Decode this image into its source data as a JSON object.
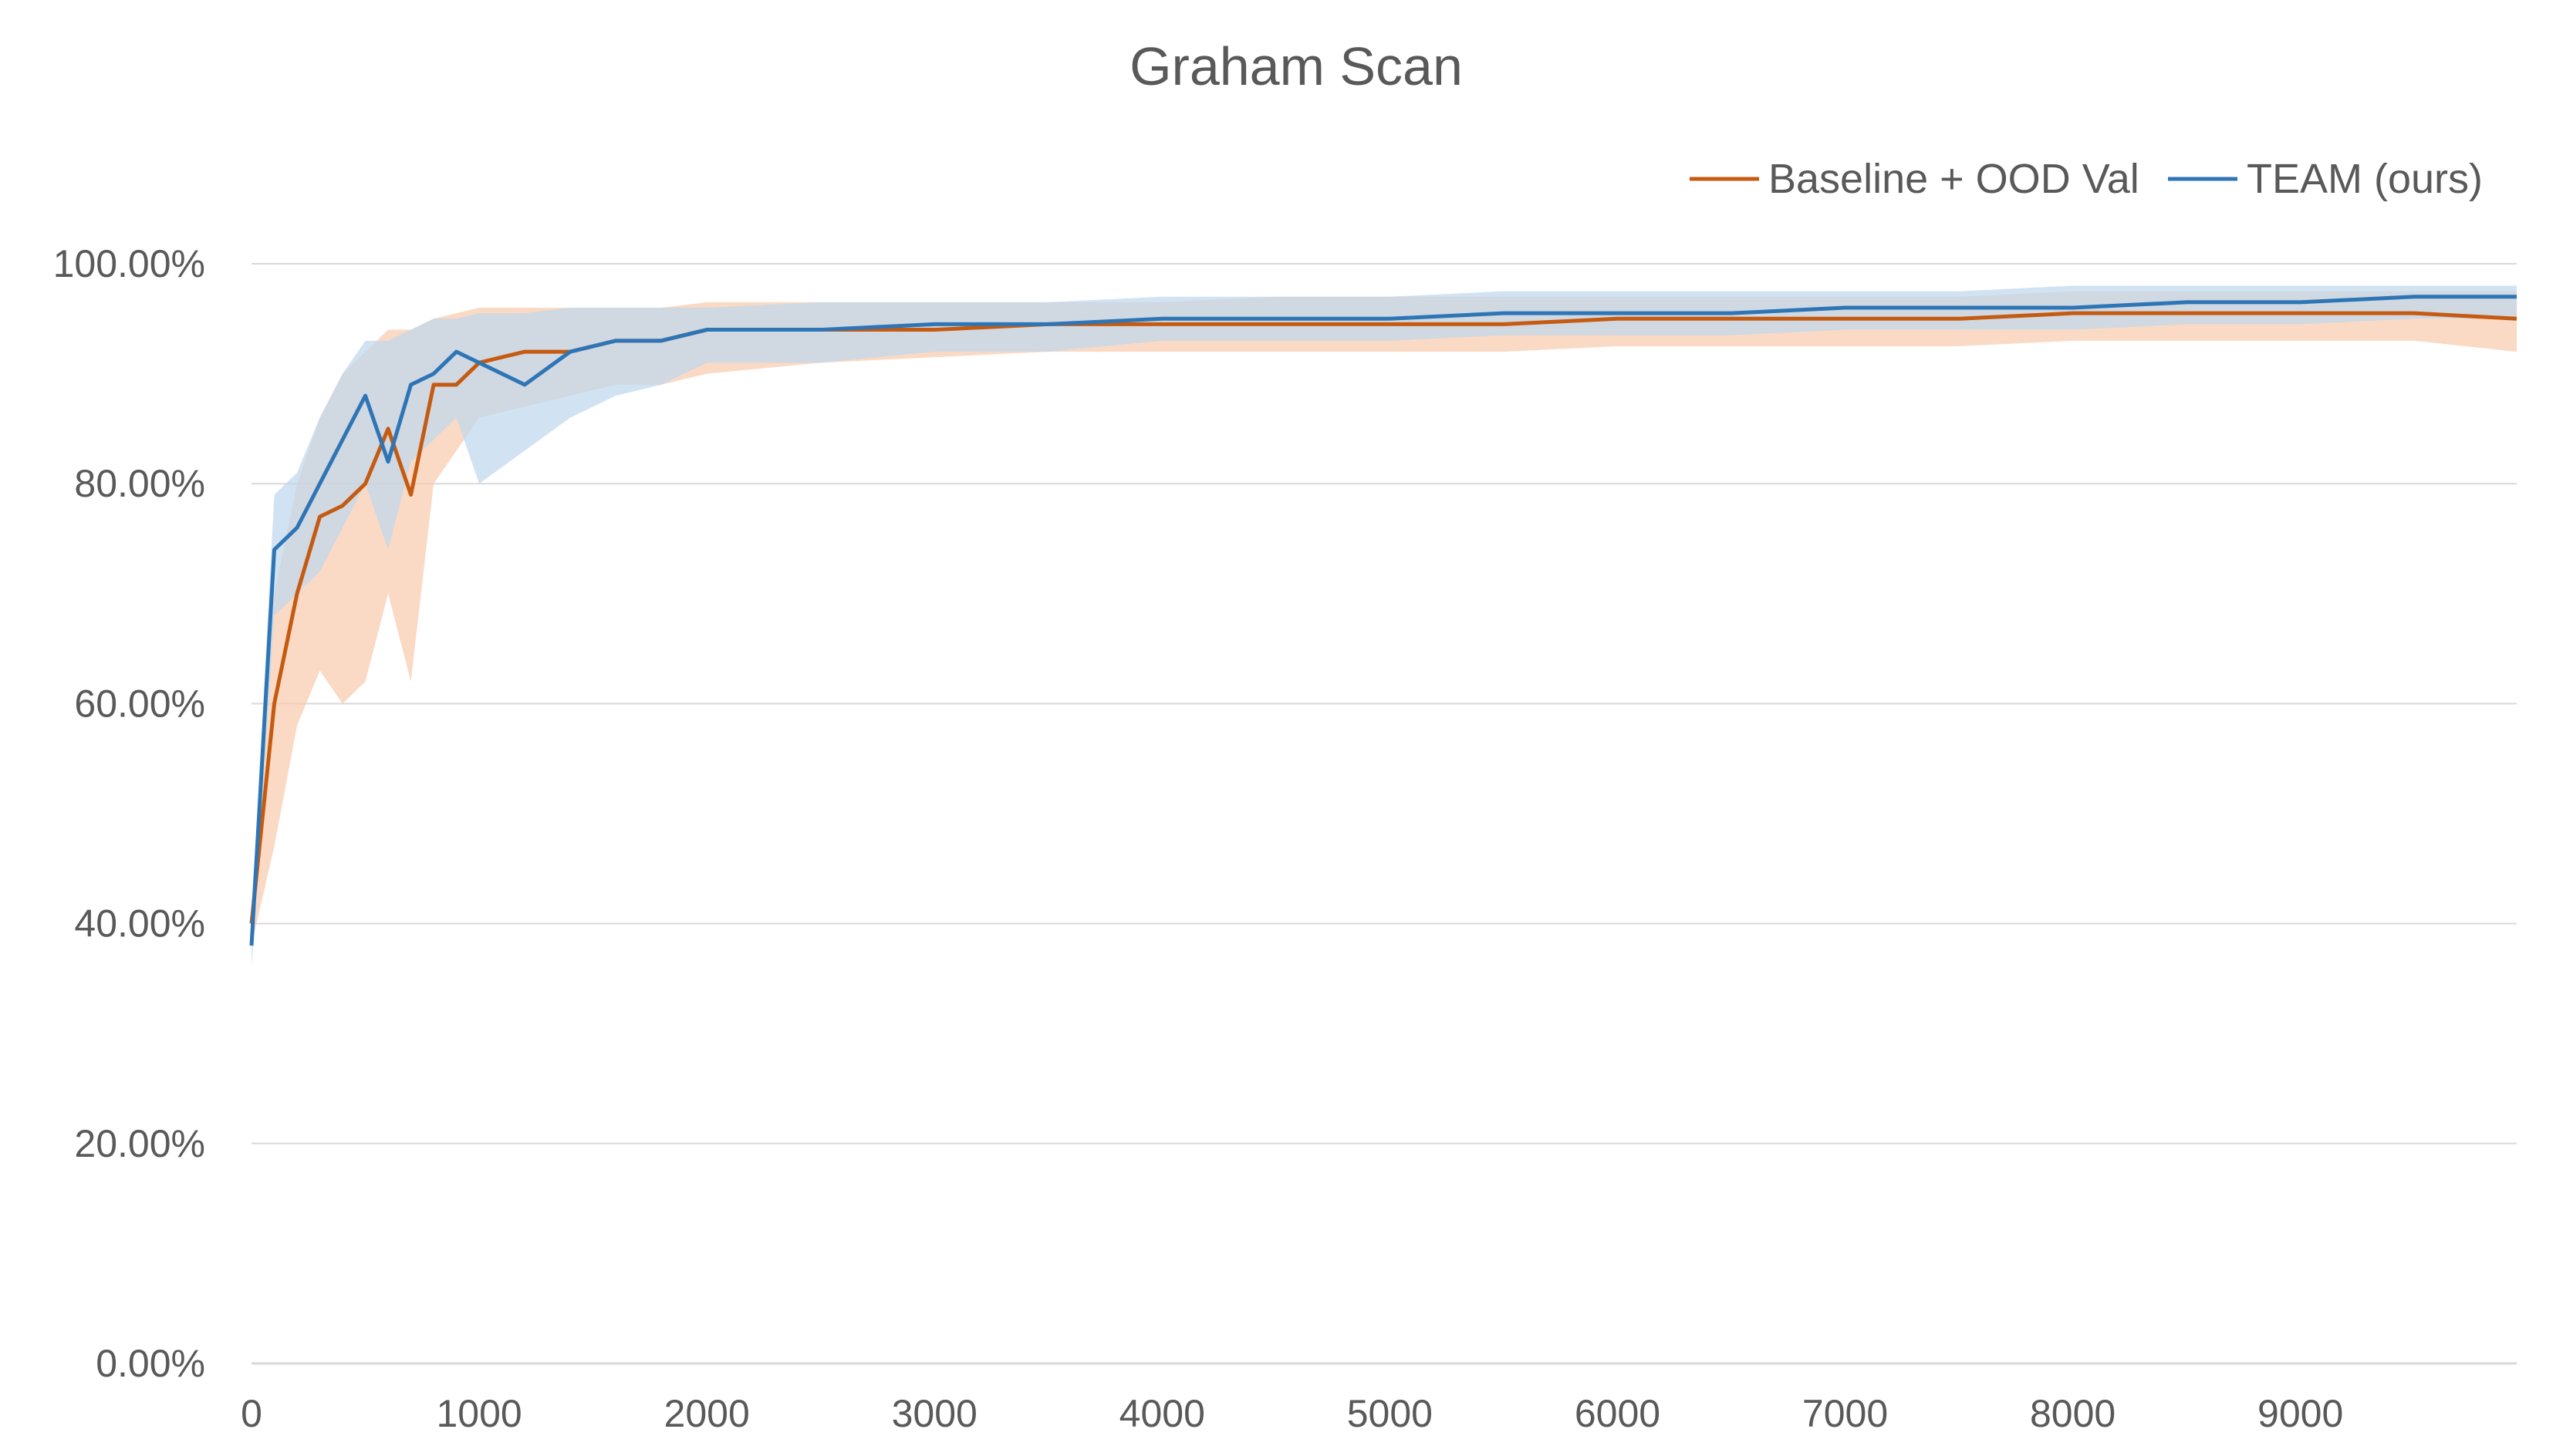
{
  "chart_data": {
    "type": "line",
    "title": "Graham Scan",
    "xlabel": "",
    "ylabel": "",
    "xlim": [
      0,
      9950
    ],
    "ylim": [
      0,
      1
    ],
    "x_ticks": [
      0,
      1000,
      2000,
      3000,
      4000,
      5000,
      6000,
      7000,
      8000,
      9000
    ],
    "x_tick_labels": [
      "0",
      "1000",
      "2000",
      "3000",
      "4000",
      "5000",
      "6000",
      "7000",
      "8000",
      "9000"
    ],
    "y_ticks": [
      0,
      0.2,
      0.4,
      0.6,
      0.8,
      1.0
    ],
    "y_tick_labels": [
      "0.00%",
      "20.00%",
      "40.00%",
      "60.00%",
      "80.00%",
      "100.00%"
    ],
    "grid": "horizontal",
    "legend_position": "top-right",
    "x": [
      0,
      100,
      200,
      300,
      400,
      500,
      600,
      700,
      800,
      900,
      1000,
      1200,
      1400,
      1600,
      1800,
      2000,
      2500,
      3000,
      3500,
      4000,
      4500,
      5000,
      5500,
      6000,
      6500,
      7000,
      7500,
      8000,
      8500,
      9000,
      9500,
      9950
    ],
    "series": [
      {
        "name": "Baseline + OOD Val",
        "color": "#C55A11",
        "band_color": "#F8CBAD",
        "values": [
          0.4,
          0.6,
          0.7,
          0.77,
          0.78,
          0.8,
          0.85,
          0.79,
          0.89,
          0.89,
          0.91,
          0.92,
          0.92,
          0.93,
          0.93,
          0.94,
          0.94,
          0.94,
          0.945,
          0.945,
          0.945,
          0.945,
          0.945,
          0.95,
          0.95,
          0.95,
          0.95,
          0.955,
          0.955,
          0.955,
          0.955,
          0.95
        ],
        "lower": [
          0.38,
          0.47,
          0.58,
          0.63,
          0.6,
          0.62,
          0.7,
          0.62,
          0.8,
          0.83,
          0.86,
          0.87,
          0.88,
          0.89,
          0.89,
          0.9,
          0.91,
          0.915,
          0.92,
          0.92,
          0.92,
          0.92,
          0.92,
          0.925,
          0.925,
          0.925,
          0.925,
          0.93,
          0.93,
          0.93,
          0.93,
          0.92
        ],
        "upper": [
          0.42,
          0.7,
          0.8,
          0.86,
          0.9,
          0.92,
          0.94,
          0.94,
          0.95,
          0.955,
          0.96,
          0.96,
          0.96,
          0.96,
          0.96,
          0.965,
          0.965,
          0.965,
          0.965,
          0.965,
          0.97,
          0.97,
          0.97,
          0.97,
          0.97,
          0.97,
          0.97,
          0.975,
          0.975,
          0.975,
          0.975,
          0.975
        ]
      },
      {
        "name": "TEAM (ours)",
        "color": "#2E75B6",
        "band_color": "#BDD7EE",
        "values": [
          0.38,
          0.74,
          0.76,
          0.8,
          0.84,
          0.88,
          0.82,
          0.89,
          0.9,
          0.92,
          0.91,
          0.89,
          0.92,
          0.93,
          0.93,
          0.94,
          0.94,
          0.945,
          0.945,
          0.95,
          0.95,
          0.95,
          0.955,
          0.955,
          0.955,
          0.96,
          0.96,
          0.96,
          0.965,
          0.965,
          0.97,
          0.97
        ],
        "lower": [
          0.36,
          0.68,
          0.7,
          0.72,
          0.76,
          0.8,
          0.74,
          0.82,
          0.84,
          0.86,
          0.8,
          0.83,
          0.86,
          0.88,
          0.89,
          0.91,
          0.91,
          0.92,
          0.92,
          0.93,
          0.93,
          0.93,
          0.935,
          0.935,
          0.935,
          0.94,
          0.94,
          0.94,
          0.945,
          0.945,
          0.95,
          0.95
        ],
        "upper": [
          0.4,
          0.79,
          0.81,
          0.86,
          0.9,
          0.93,
          0.93,
          0.94,
          0.95,
          0.95,
          0.955,
          0.955,
          0.96,
          0.96,
          0.96,
          0.96,
          0.965,
          0.965,
          0.965,
          0.97,
          0.97,
          0.97,
          0.975,
          0.975,
          0.975,
          0.975,
          0.975,
          0.98,
          0.98,
          0.98,
          0.98,
          0.98
        ]
      }
    ]
  }
}
